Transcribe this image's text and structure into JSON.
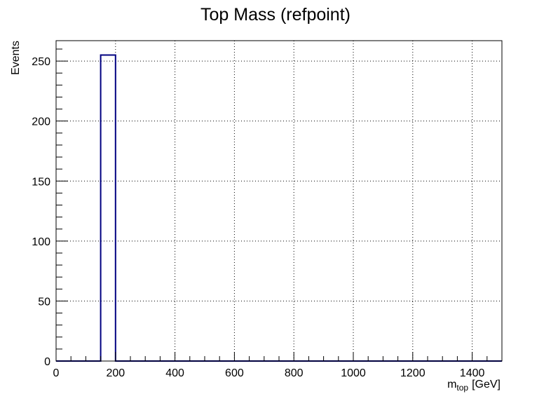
{
  "chart_data": {
    "type": "bar",
    "title": "Top Mass (refpoint)",
    "xlabel": "m",
    "xlabel_sub": "top",
    "xlabel_unit": "[GeV]",
    "ylabel": "Events",
    "xlim": [
      0,
      1500
    ],
    "ylim": [
      0,
      267
    ],
    "x_ticks": [
      "0",
      "200",
      "400",
      "600",
      "800",
      "1000",
      "1200",
      "1400"
    ],
    "y_ticks": [
      "0",
      "50",
      "100",
      "150",
      "200",
      "250"
    ],
    "bins": [
      {
        "x0": 150,
        "x1": 200,
        "value": 255
      }
    ],
    "grid": true,
    "line_color": "#000080"
  }
}
